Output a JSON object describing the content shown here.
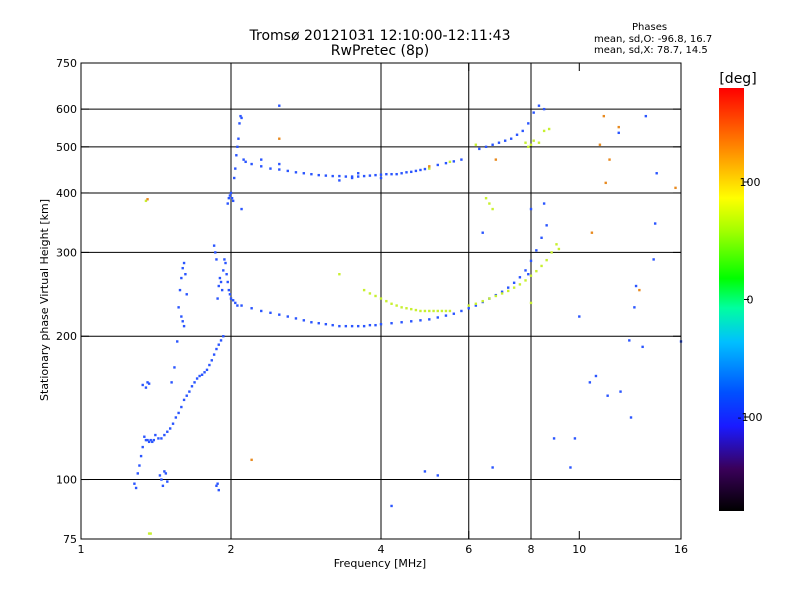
{
  "chart_data": {
    "type": "scatter",
    "title": "Tromsø 20121031 12:10:00-12:11:43",
    "subtitle": "RwPretec (8p)",
    "xlabel": "Frequency [MHz]",
    "ylabel": "Stationary phase Virtual Height [km]",
    "x_scale": "log",
    "y_scale": "log",
    "xlim": [
      1,
      16
    ],
    "ylim": [
      75,
      750
    ],
    "x_ticks": [
      1,
      2,
      4,
      6,
      8,
      10,
      16
    ],
    "y_ticks": [
      75,
      100,
      200,
      300,
      400,
      500,
      600,
      750
    ],
    "grid_x": [
      2,
      4,
      6,
      8
    ],
    "grid_y": [
      100,
      200,
      300,
      400,
      500,
      600
    ],
    "phases": {
      "heading": "Phases",
      "o_line": "mean, sd,O:  -96.8,  16.7",
      "x_line": "mean, sd,X:   78.7,  14.5"
    },
    "colorbar": {
      "label": "[deg]",
      "range": [
        -180,
        180
      ],
      "ticks": [
        100,
        0,
        -100
      ]
    },
    "series": [
      {
        "mode": "O",
        "color": "#2a55ff",
        "points": [
          [
            1.28,
            98
          ],
          [
            1.29,
            96
          ],
          [
            1.3,
            103
          ],
          [
            1.31,
            107
          ],
          [
            1.32,
            112
          ],
          [
            1.33,
            117
          ],
          [
            1.34,
            123
          ],
          [
            1.35,
            121
          ],
          [
            1.36,
            121
          ],
          [
            1.37,
            120
          ],
          [
            1.38,
            121
          ],
          [
            1.39,
            120
          ],
          [
            1.4,
            121
          ],
          [
            1.41,
            124
          ],
          [
            1.43,
            122
          ],
          [
            1.45,
            122
          ],
          [
            1.47,
            124
          ],
          [
            1.49,
            126
          ],
          [
            1.51,
            128
          ],
          [
            1.53,
            131
          ],
          [
            1.55,
            135
          ],
          [
            1.57,
            138
          ],
          [
            1.59,
            142
          ],
          [
            1.61,
            147
          ],
          [
            1.63,
            150
          ],
          [
            1.65,
            153
          ],
          [
            1.67,
            157
          ],
          [
            1.69,
            160
          ],
          [
            1.71,
            163
          ],
          [
            1.73,
            165
          ],
          [
            1.75,
            166
          ],
          [
            1.77,
            168
          ],
          [
            1.79,
            170
          ],
          [
            1.81,
            174
          ],
          [
            1.83,
            178
          ],
          [
            1.85,
            183
          ],
          [
            1.87,
            188
          ],
          [
            1.89,
            192
          ],
          [
            1.91,
            196
          ],
          [
            1.93,
            200
          ],
          [
            1.33,
            158
          ],
          [
            1.35,
            156
          ],
          [
            1.36,
            160
          ],
          [
            1.37,
            159
          ],
          [
            1.52,
            160
          ],
          [
            1.54,
            172
          ],
          [
            1.56,
            195
          ],
          [
            1.57,
            230
          ],
          [
            1.58,
            250
          ],
          [
            1.59,
            265
          ],
          [
            1.6,
            278
          ],
          [
            1.61,
            285
          ],
          [
            1.62,
            270
          ],
          [
            1.63,
            245
          ],
          [
            1.44,
            102
          ],
          [
            1.45,
            100
          ],
          [
            1.46,
            97
          ],
          [
            1.47,
            104
          ],
          [
            1.48,
            103
          ],
          [
            1.49,
            99
          ],
          [
            1.87,
            97
          ],
          [
            1.88,
            98
          ],
          [
            1.89,
            95
          ],
          [
            1.59,
            220
          ],
          [
            1.6,
            215
          ],
          [
            1.61,
            210
          ],
          [
            1.88,
            240
          ],
          [
            1.89,
            255
          ],
          [
            1.9,
            265
          ],
          [
            1.91,
            260
          ],
          [
            1.92,
            250
          ],
          [
            1.93,
            275
          ],
          [
            1.94,
            290
          ],
          [
            1.95,
            285
          ],
          [
            1.96,
            270
          ],
          [
            1.97,
            260
          ],
          [
            1.98,
            250
          ],
          [
            1.99,
            245
          ],
          [
            2.0,
            240
          ],
          [
            2.02,
            238
          ],
          [
            2.04,
            235
          ],
          [
            2.06,
            232
          ],
          [
            1.85,
            310
          ],
          [
            1.86,
            300
          ],
          [
            1.87,
            290
          ],
          [
            1.97,
            380
          ],
          [
            1.98,
            390
          ],
          [
            1.99,
            395
          ],
          [
            2.0,
            400
          ],
          [
            2.01,
            390
          ],
          [
            2.02,
            385
          ],
          [
            2.03,
            430
          ],
          [
            2.04,
            450
          ],
          [
            2.05,
            480
          ],
          [
            2.06,
            500
          ],
          [
            2.07,
            520
          ],
          [
            2.08,
            560
          ],
          [
            2.09,
            580
          ],
          [
            2.1,
            575
          ],
          [
            2.12,
            470
          ],
          [
            2.14,
            465
          ],
          [
            2.2,
            460
          ],
          [
            2.3,
            455
          ],
          [
            2.4,
            450
          ],
          [
            2.5,
            448
          ],
          [
            2.6,
            445
          ],
          [
            2.7,
            442
          ],
          [
            2.8,
            440
          ],
          [
            2.9,
            438
          ],
          [
            3.0,
            436
          ],
          [
            3.1,
            435
          ],
          [
            3.2,
            434
          ],
          [
            3.3,
            434
          ],
          [
            3.4,
            433
          ],
          [
            3.5,
            433
          ],
          [
            3.6,
            433
          ],
          [
            3.7,
            434
          ],
          [
            3.8,
            435
          ],
          [
            3.9,
            436
          ],
          [
            4.0,
            437
          ],
          [
            4.1,
            438
          ],
          [
            4.2,
            438
          ],
          [
            4.3,
            438
          ],
          [
            4.4,
            440
          ],
          [
            4.5,
            442
          ],
          [
            4.6,
            443
          ],
          [
            4.7,
            445
          ],
          [
            4.8,
            447
          ],
          [
            4.9,
            449
          ],
          [
            5.0,
            452
          ],
          [
            5.2,
            458
          ],
          [
            5.4,
            462
          ],
          [
            5.6,
            466
          ],
          [
            5.8,
            470
          ],
          [
            2.5,
            610
          ],
          [
            3.3,
            425
          ],
          [
            3.5,
            430
          ],
          [
            3.6,
            440
          ],
          [
            4.0,
            430
          ],
          [
            2.3,
            470
          ],
          [
            2.5,
            460
          ],
          [
            6.3,
            495
          ],
          [
            6.5,
            500
          ],
          [
            6.7,
            505
          ],
          [
            6.9,
            510
          ],
          [
            7.1,
            515
          ],
          [
            7.3,
            520
          ],
          [
            7.5,
            530
          ],
          [
            7.7,
            540
          ],
          [
            7.9,
            560
          ],
          [
            8.1,
            590
          ],
          [
            8.3,
            610
          ],
          [
            8.5,
            600
          ],
          [
            2.1,
            232
          ],
          [
            2.2,
            229
          ],
          [
            2.3,
            226
          ],
          [
            2.4,
            224
          ],
          [
            2.5,
            222
          ],
          [
            2.6,
            220
          ],
          [
            2.7,
            218
          ],
          [
            2.8,
            216
          ],
          [
            2.9,
            214
          ],
          [
            3.0,
            213
          ],
          [
            3.1,
            212
          ],
          [
            3.2,
            211
          ],
          [
            3.3,
            210
          ],
          [
            3.4,
            210
          ],
          [
            3.5,
            210
          ],
          [
            3.6,
            210
          ],
          [
            3.7,
            210
          ],
          [
            3.8,
            211
          ],
          [
            3.9,
            211
          ],
          [
            4.0,
            212
          ],
          [
            4.2,
            213
          ],
          [
            4.4,
            214
          ],
          [
            4.6,
            215
          ],
          [
            4.8,
            216
          ],
          [
            5.0,
            217
          ],
          [
            5.2,
            219
          ],
          [
            5.4,
            221
          ],
          [
            5.6,
            223
          ],
          [
            5.8,
            226
          ],
          [
            6.0,
            229
          ],
          [
            6.2,
            232
          ],
          [
            6.4,
            236
          ],
          [
            6.6,
            240
          ],
          [
            6.8,
            244
          ],
          [
            7.0,
            248
          ],
          [
            7.2,
            253
          ],
          [
            7.4,
            259
          ],
          [
            7.6,
            266
          ],
          [
            7.8,
            275
          ],
          [
            8.0,
            288
          ],
          [
            8.2,
            303
          ],
          [
            8.4,
            322
          ],
          [
            8.6,
            342
          ],
          [
            4.2,
            88
          ],
          [
            4.9,
            104
          ],
          [
            5.2,
            102
          ],
          [
            6.7,
            106
          ],
          [
            8.9,
            122
          ],
          [
            9.6,
            106
          ],
          [
            9.8,
            122
          ],
          [
            10.8,
            165
          ],
          [
            11.4,
            150
          ],
          [
            12.1,
            153
          ],
          [
            12.6,
            196
          ],
          [
            10.0,
            220
          ],
          [
            10.5,
            160
          ],
          [
            12.7,
            135
          ],
          [
            12.9,
            230
          ],
          [
            13.0,
            255
          ],
          [
            14.1,
            290
          ],
          [
            14.2,
            345
          ],
          [
            14.3,
            440
          ],
          [
            13.4,
            190
          ],
          [
            13.6,
            580
          ],
          [
            12.0,
            535
          ],
          [
            16.0,
            195
          ],
          [
            8.0,
            370
          ],
          [
            8.5,
            380
          ],
          [
            7.9,
            270
          ],
          [
            6.4,
            330
          ],
          [
            2.1,
            370
          ]
        ]
      },
      {
        "mode": "X",
        "color": "#c8f030",
        "points": [
          [
            3.7,
            250
          ],
          [
            3.8,
            246
          ],
          [
            3.9,
            243
          ],
          [
            4.0,
            240
          ],
          [
            4.1,
            237
          ],
          [
            4.2,
            234
          ],
          [
            4.3,
            232
          ],
          [
            4.4,
            230
          ],
          [
            4.5,
            229
          ],
          [
            4.6,
            228
          ],
          [
            4.7,
            227
          ],
          [
            4.8,
            226
          ],
          [
            4.9,
            226
          ],
          [
            5.0,
            226
          ],
          [
            5.1,
            226
          ],
          [
            5.2,
            226
          ],
          [
            5.3,
            226
          ],
          [
            5.4,
            226
          ],
          [
            5.5,
            226
          ],
          [
            6.0,
            232
          ],
          [
            6.2,
            234
          ],
          [
            6.4,
            237
          ],
          [
            6.6,
            240
          ],
          [
            6.8,
            243
          ],
          [
            7.0,
            246
          ],
          [
            7.2,
            249
          ],
          [
            7.4,
            253
          ],
          [
            7.6,
            257
          ],
          [
            7.8,
            262
          ],
          [
            8.0,
            268
          ],
          [
            8.2,
            274
          ],
          [
            8.4,
            281
          ],
          [
            8.6,
            289
          ],
          [
            8.8,
            300
          ],
          [
            9.0,
            312
          ],
          [
            9.1,
            305
          ],
          [
            7.8,
            510
          ],
          [
            7.9,
            500
          ],
          [
            8.0,
            505
          ],
          [
            8.1,
            515
          ],
          [
            8.3,
            510
          ],
          [
            8.5,
            540
          ],
          [
            8.7,
            545
          ],
          [
            6.5,
            390
          ],
          [
            6.6,
            380
          ],
          [
            6.7,
            370
          ],
          [
            5.0,
            450
          ],
          [
            5.5,
            465
          ],
          [
            6.2,
            505
          ],
          [
            3.3,
            270
          ],
          [
            1.35,
            385
          ],
          [
            1.37,
            77
          ],
          [
            1.38,
            77
          ],
          [
            8.0,
            235
          ]
        ]
      },
      {
        "mode": "other",
        "color": "#e88a20",
        "points": [
          [
            1.36,
            388
          ],
          [
            2.2,
            110
          ],
          [
            2.5,
            520
          ],
          [
            5.0,
            455
          ],
          [
            11.2,
            580
          ],
          [
            11.0,
            505
          ],
          [
            11.5,
            470
          ],
          [
            15.6,
            410
          ],
          [
            12.0,
            550
          ],
          [
            13.2,
            250
          ],
          [
            11.3,
            420
          ],
          [
            6.8,
            470
          ],
          [
            10.6,
            330
          ]
        ]
      }
    ]
  }
}
